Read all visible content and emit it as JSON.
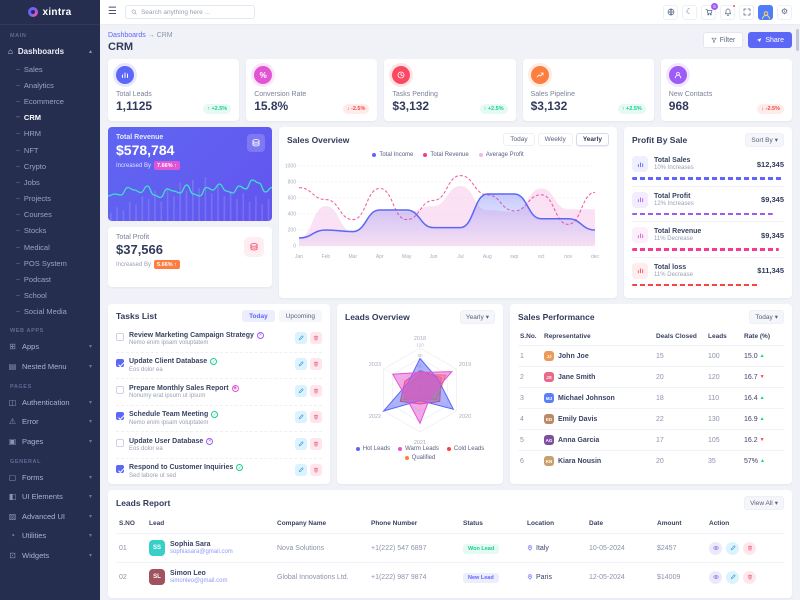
{
  "ui": {
    "chevron_down": "▾",
    "chevron_up": "▴",
    "dash": "–",
    "breadcrumb_sep": "→",
    "percent_glyph": "%"
  },
  "brand": {
    "name": "xintra"
  },
  "header": {
    "search_placeholder": "Search anything here ...",
    "cart_badge": "5"
  },
  "sidebar": {
    "sections": {
      "main": "Main",
      "webapps": "Web Apps",
      "pages": "Pages",
      "general": "General"
    },
    "dashboards": {
      "label": "Dashboards",
      "glyph": "⌂"
    },
    "dashboard_children": [
      {
        "label": "Sales",
        "cls": ""
      },
      {
        "label": "Analytics",
        "cls": ""
      },
      {
        "label": "Ecommerce",
        "cls": ""
      },
      {
        "label": "CRM",
        "cls": "active"
      },
      {
        "label": "HRM",
        "cls": ""
      },
      {
        "label": "NFT",
        "cls": ""
      },
      {
        "label": "Crypto",
        "cls": ""
      },
      {
        "label": "Jobs",
        "cls": ""
      },
      {
        "label": "Projects",
        "cls": ""
      },
      {
        "label": "Courses",
        "cls": ""
      },
      {
        "label": "Stocks",
        "cls": ""
      },
      {
        "label": "Medical",
        "cls": ""
      },
      {
        "label": "POS System",
        "cls": ""
      },
      {
        "label": "Podcast",
        "cls": ""
      },
      {
        "label": "School",
        "cls": ""
      },
      {
        "label": "Social Media",
        "cls": ""
      }
    ],
    "webapps": [
      {
        "label": "Apps",
        "glyph": "⊞"
      },
      {
        "label": "Nested Menu",
        "glyph": "▤"
      }
    ],
    "pages": [
      {
        "label": "Authentication",
        "glyph": "◫"
      },
      {
        "label": "Error",
        "glyph": "⚠"
      },
      {
        "label": "Pages",
        "glyph": "▣"
      }
    ],
    "general": [
      {
        "label": "Forms",
        "glyph": "▢"
      },
      {
        "label": "UI Elements",
        "glyph": "◧"
      },
      {
        "label": "Advanced UI",
        "glyph": "▨"
      },
      {
        "label": "Utilities",
        "glyph": "◔"
      },
      {
        "label": "Widgets",
        "glyph": "⊡"
      }
    ]
  },
  "page": {
    "breadcrumb_root": "Dashboards",
    "breadcrumb_current": "CRM",
    "title": "CRM",
    "filter_label": "Filter",
    "share_label": "Share"
  },
  "kpis": [
    {
      "label": "Total Leads",
      "value": "1,1125",
      "arrow": "↑",
      "delta": "+2.5%",
      "dir": "up",
      "color": "indigo"
    },
    {
      "label": "Conversion Rate",
      "value": "15.8%",
      "arrow": "↓",
      "delta": "-2.5%",
      "dir": "down",
      "color": "magenta"
    },
    {
      "label": "Tasks Pending",
      "value": "$3,132",
      "arrow": "↑",
      "delta": "+2.5%",
      "dir": "up",
      "color": "rose"
    },
    {
      "label": "Sales Pipeline",
      "value": "$3,132",
      "arrow": "↑",
      "delta": "+2.5%",
      "dir": "up",
      "color": "orange"
    },
    {
      "label": "New Contacts",
      "value": "968",
      "arrow": "↓",
      "delta": "-2.5%",
      "dir": "down",
      "color": "purple"
    }
  ],
  "revenue_card": {
    "label": "Total Revenue",
    "value": "$578,784",
    "sub": "Increased By",
    "badge": "7.66% ↑",
    "spark_line": [
      38,
      42,
      40,
      55,
      50,
      45,
      58,
      40,
      35,
      52,
      48,
      44,
      60,
      42,
      38,
      55,
      50,
      62,
      48,
      44,
      58,
      52,
      70,
      64,
      46,
      55
    ],
    "spark_bars": [
      15,
      25,
      20,
      35,
      30,
      45,
      40,
      55,
      35,
      60,
      45,
      70,
      55,
      75,
      60,
      80,
      50,
      65,
      45,
      55,
      40,
      50,
      35,
      45,
      30,
      40
    ]
  },
  "profit_card": {
    "label": "Total Profit",
    "value": "$37,566",
    "sub": "Increased By",
    "badge": "5.66% ↑"
  },
  "sales_overview": {
    "title": "Sales Overview",
    "tabs": [
      {
        "label": "Today",
        "cls": ""
      },
      {
        "label": "Weekly",
        "cls": ""
      },
      {
        "label": "Yearly",
        "cls": "active"
      }
    ],
    "chart_data": {
      "type": "line",
      "categories": [
        "Jan",
        "Feb",
        "Mar",
        "Apr",
        "May",
        "Jun",
        "Jul",
        "Aug",
        "sep",
        "oct",
        "nov",
        "dec"
      ],
      "ylim": [
        0,
        1000
      ],
      "yticks": [
        0,
        200,
        400,
        600,
        800,
        1000
      ],
      "series": [
        {
          "name": "Total Income",
          "color": "#5c67f7",
          "style": "solid",
          "values": [
            100,
            200,
            180,
            450,
            450,
            230,
            230,
            650,
            650,
            340,
            340,
            200
          ]
        },
        {
          "name": "Total Revenue",
          "color": "#f5398f",
          "style": "dashed",
          "values": [
            730,
            580,
            330,
            720,
            330,
            570,
            880,
            640,
            440,
            640,
            270,
            670
          ]
        },
        {
          "name": "Average Profit",
          "color": "#f3b7e4",
          "style": "area",
          "values": [
            100,
            500,
            180,
            440,
            430,
            500,
            750,
            450,
            430,
            720,
            460,
            460
          ]
        }
      ]
    }
  },
  "profit_by_sale": {
    "title": "Profit By Sale",
    "sort_label": "Sort By",
    "items": [
      {
        "label": "Total Sales",
        "sub": "10% Increases",
        "value": "$12,345",
        "width": "100%",
        "cls": "indigo"
      },
      {
        "label": "Total Profit",
        "sub": "12% Increases",
        "value": "$9,345",
        "width": "93%",
        "cls": "purple"
      },
      {
        "label": "Total Revenue",
        "sub": "11% Decrease",
        "value": "$9,345",
        "width": "97%",
        "cls": "magenta"
      },
      {
        "label": "Total loss",
        "sub": "11% Decrease",
        "value": "$11,345",
        "width": "84%",
        "cls": "rose"
      }
    ]
  },
  "tasks": {
    "title": "Tasks List",
    "tabs": [
      {
        "label": "Today",
        "cls": "active"
      },
      {
        "label": "Upcoming",
        "cls": ""
      }
    ],
    "items": [
      {
        "title": "Review Marketing Campaign Strategy",
        "sub": "Nemo enim ipsam voluptatem",
        "checked": "unchecked",
        "mark": "✕",
        "mark_cls": "purple"
      },
      {
        "title": "Update Client Database",
        "sub": "Eos dolor ea",
        "checked": "checked",
        "mark": "✓",
        "mark_cls": "green"
      },
      {
        "title": "Prepare Monthly Sales Report",
        "sub": "Nonumy erat ipsum ut ipsum",
        "checked": "unchecked",
        "mark": "◉",
        "mark_cls": "magenta"
      },
      {
        "title": "Schedule Team Meeting",
        "sub": "Nemo enim ipsam voluptatem",
        "checked": "checked",
        "mark": "✓",
        "mark_cls": "green"
      },
      {
        "title": "Update User Database",
        "sub": "Eos dolor ea",
        "checked": "unchecked",
        "mark": "✕",
        "mark_cls": "purple"
      },
      {
        "title": "Respond to Customer Inquiries",
        "sub": "Sed labore ut sed",
        "checked": "checked",
        "mark": "✓",
        "mark_cls": "green"
      }
    ]
  },
  "leads_overview": {
    "title": "Leads Overview",
    "dropdown": "Yearly",
    "chart_data": {
      "type": "radar",
      "axes": [
        "2018",
        "2019",
        "2020",
        "2021",
        "2022",
        "2023"
      ],
      "rings": [
        0,
        30,
        60,
        90,
        120
      ],
      "rmax": 120,
      "series": [
        {
          "name": "Hot Leads",
          "color": "#5c67f7",
          "values": [
            90,
            60,
            110,
            30,
            120,
            40
          ]
        },
        {
          "name": "Warm Leads",
          "color": "#e354d4",
          "values": [
            50,
            105,
            35,
            95,
            45,
            90
          ]
        },
        {
          "name": "Cold Leads",
          "color": "#fb4242",
          "values": [
            55,
            70,
            65,
            40,
            65,
            50
          ]
        },
        {
          "name": "Qualified",
          "color": "#fd7e41",
          "values": [
            45,
            85,
            55,
            25,
            55,
            35
          ]
        }
      ]
    }
  },
  "sales_performance": {
    "title": "Sales Performance",
    "dropdown": "Today",
    "headers": [
      "S.No.",
      "Representative",
      "Deals Closed",
      "Leads",
      "Rate (%)"
    ],
    "rows": [
      {
        "sno": "1",
        "rep": "John Joe",
        "initials": "JJ",
        "av": "av1",
        "deals": "15",
        "leads": "100",
        "rate": "15.0",
        "dir_icon": "▲",
        "dir": "up"
      },
      {
        "sno": "2",
        "rep": "Jane Smith",
        "initials": "JS",
        "av": "av2",
        "deals": "20",
        "leads": "120",
        "rate": "16.7",
        "dir_icon": "▼",
        "dir": "down"
      },
      {
        "sno": "3",
        "rep": "Michael Johnson",
        "initials": "MJ",
        "av": "av3",
        "deals": "18",
        "leads": "110",
        "rate": "16.4",
        "dir_icon": "▲",
        "dir": "up"
      },
      {
        "sno": "4",
        "rep": "Emily Davis",
        "initials": "ED",
        "av": "av4",
        "deals": "22",
        "leads": "130",
        "rate": "16.9",
        "dir_icon": "▲",
        "dir": "up"
      },
      {
        "sno": "5",
        "rep": "Anna Garcia",
        "initials": "AG",
        "av": "av5",
        "deals": "17",
        "leads": "105",
        "rate": "16.2",
        "dir_icon": "▼",
        "dir": "down"
      },
      {
        "sno": "6",
        "rep": "Kiara Nousin",
        "initials": "KN",
        "av": "av6",
        "deals": "20",
        "leads": "35",
        "rate": "57%",
        "dir_icon": "▲",
        "dir": "up"
      }
    ]
  },
  "leads_report": {
    "title": "Leads Report",
    "view_all": "View All",
    "headers": [
      "S.NO",
      "Lead",
      "Company Name",
      "Phone Number",
      "Status",
      "Location",
      "Date",
      "Amount",
      "Action"
    ],
    "rows": [
      {
        "sno": "01",
        "name": "Sophia Sara",
        "email": "sophiasara@gmail.com",
        "initials": "SS",
        "av": "avA",
        "company": "Nova Solutions",
        "phone": "+1(222) 547 6897",
        "status": "Won Lead",
        "status_cls": "won",
        "location": "Italy",
        "date": "10-05-2024",
        "amount": "$2457"
      },
      {
        "sno": "02",
        "name": "Simon Leo",
        "email": "simonleo@gmail.com",
        "initials": "SL",
        "av": "avB",
        "company": "Global Innovations Ltd.",
        "phone": "+1(222) 987 9874",
        "status": "New Lead",
        "status_cls": "new",
        "location": "Paris",
        "date": "12-05-2024",
        "amount": "$14009"
      }
    ]
  }
}
